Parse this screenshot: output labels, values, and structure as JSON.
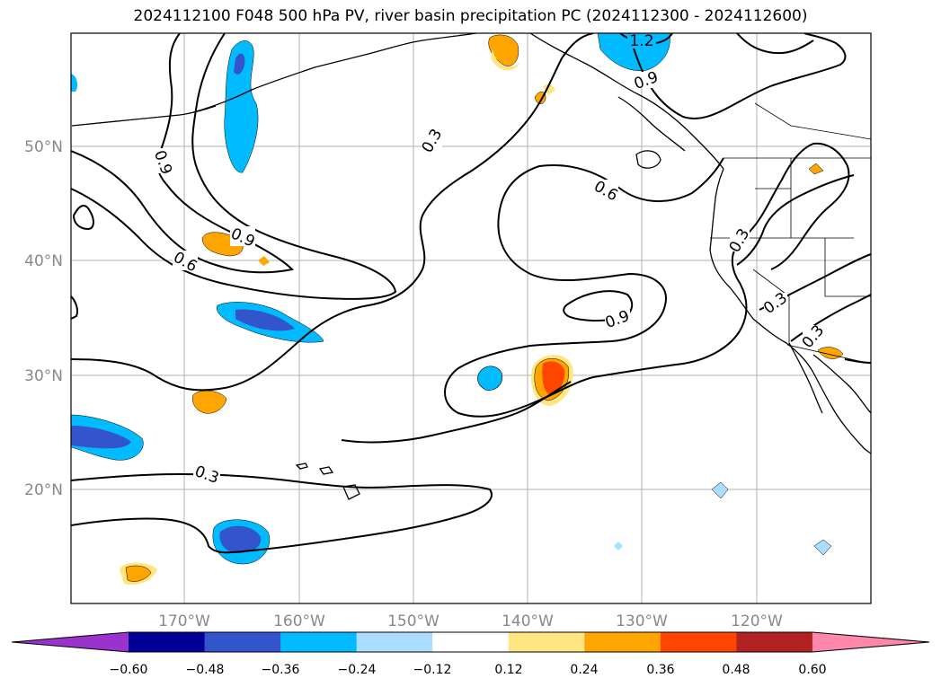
{
  "title": "2024112100 F048 500 hPa PV, river basin precipitation PC (2024112300 - 2024112600)",
  "lat_labels": [
    "50°N",
    "40°N",
    "30°N",
    "20°N"
  ],
  "lon_labels": [
    "170°W",
    "160°W",
    "150°W",
    "140°W",
    "130°W",
    "120°W"
  ],
  "contour_labels": [
    "0.3",
    "0.6",
    "0.9",
    "1.2"
  ],
  "colorbar": {
    "tick_labels": [
      "−0.60",
      "−0.48",
      "−0.36",
      "−0.24",
      "−0.12",
      "0.12",
      "0.24",
      "0.36",
      "0.48",
      "0.60"
    ],
    "colors": [
      "#9933cc",
      "#000099",
      "#3355cc",
      "#00bbff",
      "#aaddff",
      "#ffffff",
      "#ffe680",
      "#ffa500",
      "#ff4500",
      "#b22222",
      "#ff88aa"
    ]
  },
  "colors": {
    "strong_neg": "#3355cc",
    "neg": "#00bbff",
    "weak_neg": "#aaddff",
    "weak_pos": "#ffe680",
    "pos": "#ffa500",
    "strong_pos": "#ff4500",
    "grid": "#b0b0b0",
    "contour": "#000000"
  }
}
